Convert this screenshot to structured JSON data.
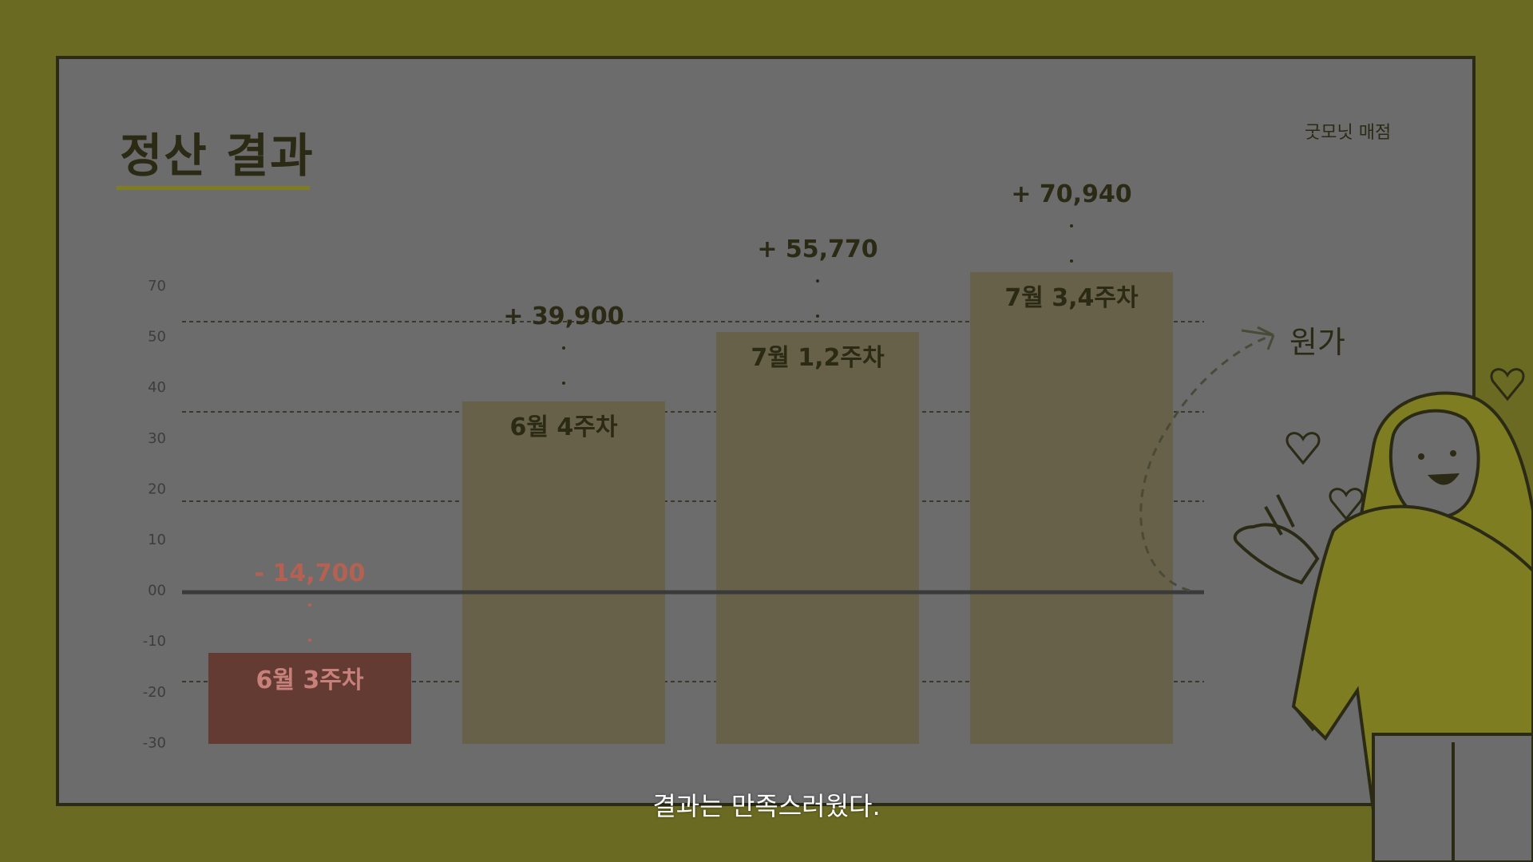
{
  "slide": {
    "title": "정산 결과",
    "store_label": "굿모닛 매점",
    "caption": "결과는 만족스러웠다.",
    "annotation": "원가"
  },
  "colors": {
    "background": "#6b6a22",
    "panel": "#6c6c6c",
    "bar_positive": "#686149",
    "bar_negative": "#633b33",
    "value_positive": "#2b2a14",
    "value_negative": "#b56152",
    "baseline": "#3a3a3a"
  },
  "chart_data": {
    "type": "bar",
    "title": "",
    "xlabel": "",
    "ylabel": "",
    "y_tick_labels": [
      "70",
      "50",
      "40",
      "30",
      "20",
      "10",
      "00",
      "-10",
      "-20",
      "-30"
    ],
    "categories": [
      "6월 3주차",
      "6월 4주차",
      "7월 1,2주차",
      "7월 3,4주차"
    ],
    "values": [
      -14700,
      39900,
      55770,
      70940
    ],
    "value_labels": [
      "- 14,700",
      "+ 39,900",
      "+ 55,770",
      "+ 70,940"
    ],
    "grid": "dashed",
    "legend": "none"
  }
}
